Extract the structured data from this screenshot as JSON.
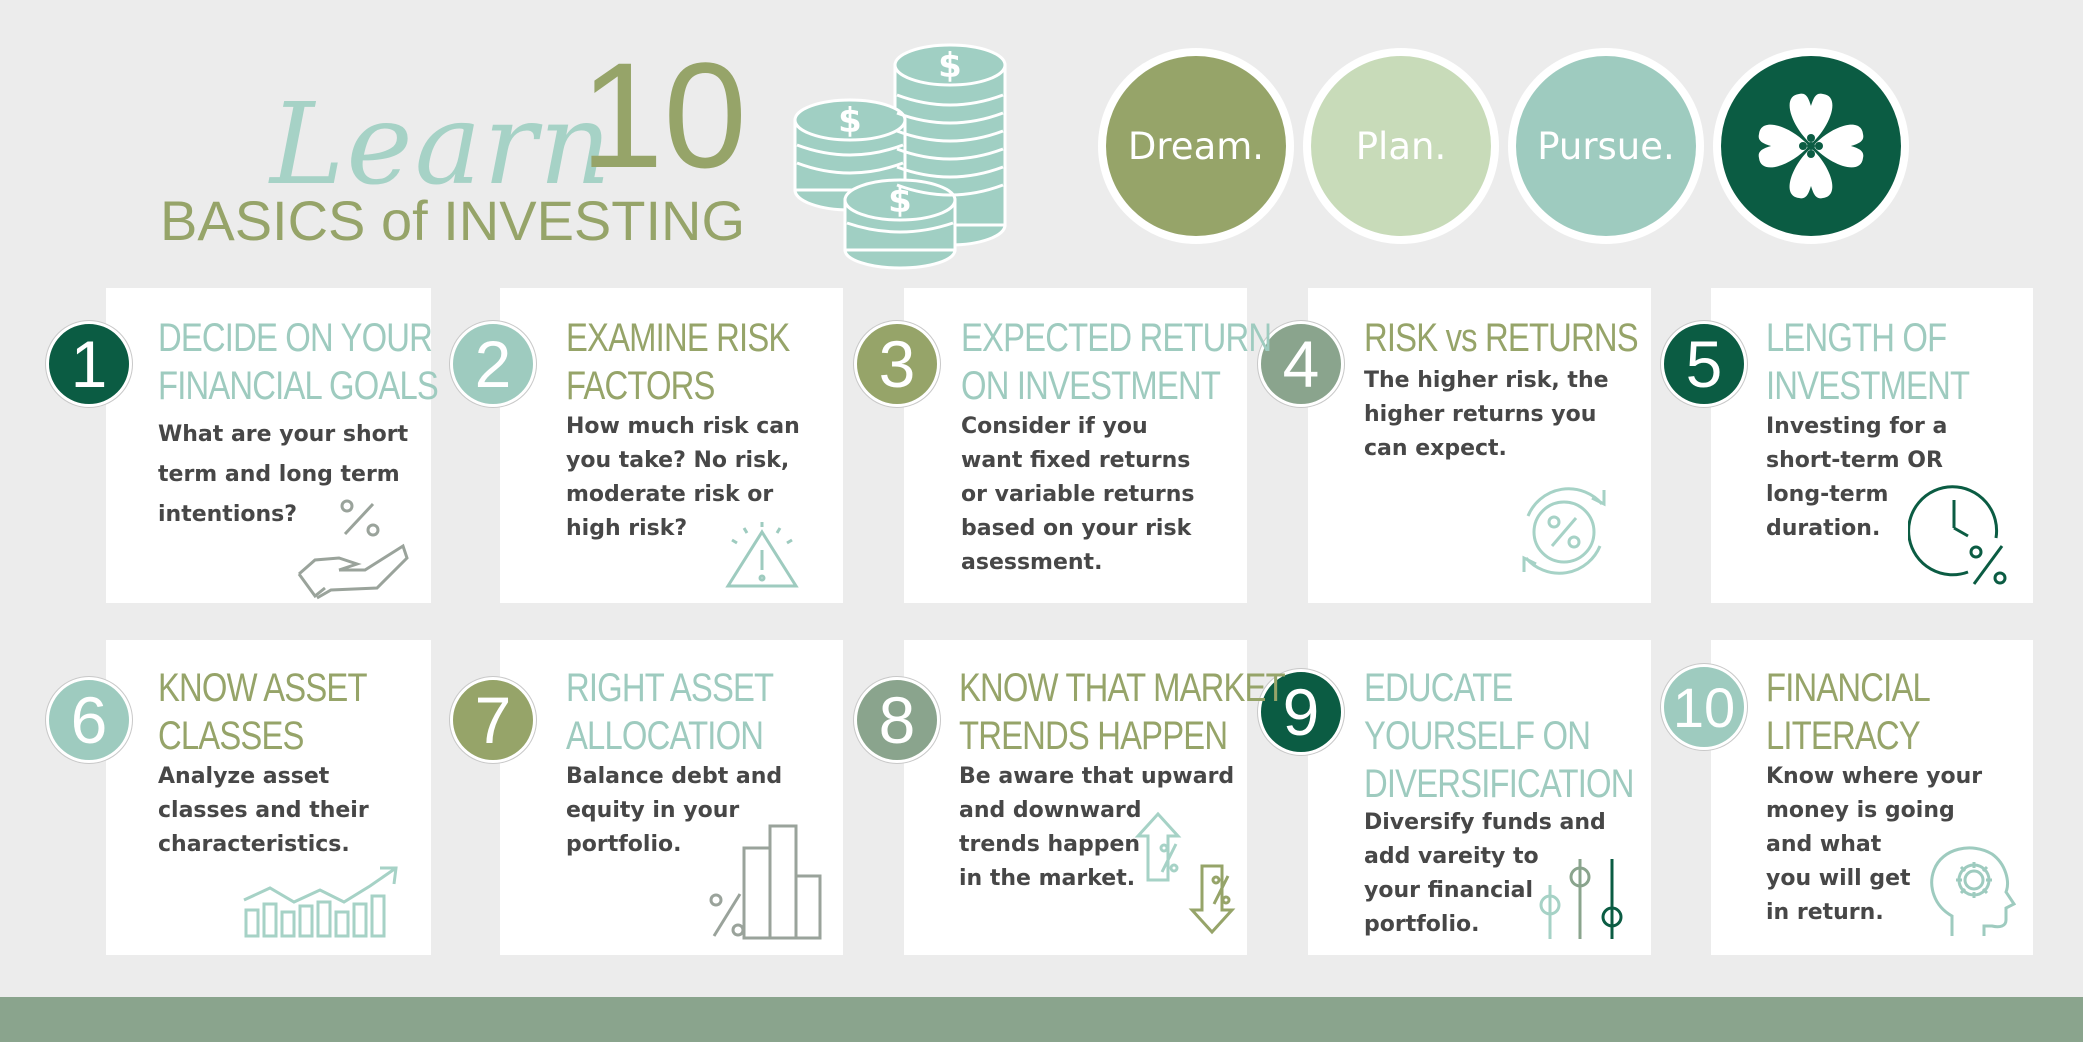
{
  "header": {
    "learn": "Learn",
    "ten": "10",
    "subtitle": "BASICS of INVESTING"
  },
  "pillars": [
    {
      "label": "Dream.",
      "color": "#96a469"
    },
    {
      "label": "Plan.",
      "color": "#c8dbb9"
    },
    {
      "label": "Pursue.",
      "color": "#9ecbbf"
    }
  ],
  "logo_color": "#0b5c43",
  "colors": {
    "dark_green": "#0b5c43",
    "mint": "#9ecbbf",
    "olive": "#96a469",
    "sage": "#8aa48d",
    "text_gray": "#474747"
  },
  "steps": [
    {
      "num": "1",
      "title_1": "DECIDE ON YOUR",
      "title_2": "FINANCIAL GOALS",
      "title_3": "",
      "body": [
        "What are your short",
        "term and long term",
        "intentions?"
      ],
      "icon": "hand-percent-icon"
    },
    {
      "num": "2",
      "title_1": "EXAMINE RISK",
      "title_2": "FACTORS",
      "title_3": "",
      "body": [
        "How much risk can",
        "you take? No risk,",
        "moderate risk or",
        "high risk?"
      ],
      "icon": "warning-icon"
    },
    {
      "num": "3",
      "title_1": "EXPECTED RETURN",
      "title_2": "ON INVESTMENT",
      "title_3": "",
      "body": [
        "Consider if you",
        "want fixed returns",
        "or variable returns",
        "based on your risk",
        "asessment."
      ],
      "icon": ""
    },
    {
      "num": "4",
      "title_1": "RISK vs RETURNS",
      "title_2": "",
      "title_3": "",
      "body": [
        "The higher risk, the",
        "higher returns you",
        "can expect."
      ],
      "icon": "percent-cycle-icon"
    },
    {
      "num": "5",
      "title_1": "LENGTH OF",
      "title_2": "INVESTMENT",
      "title_3": "",
      "body": [
        "Investing for a",
        "short-term OR",
        "long-term",
        "duration."
      ],
      "icon": "clock-percent-icon"
    },
    {
      "num": "6",
      "title_1": "KNOW ASSET",
      "title_2": "CLASSES",
      "title_3": "",
      "body": [
        "Analyze asset",
        "classes and their",
        "characteristics."
      ],
      "icon": "growth-chart-icon"
    },
    {
      "num": "7",
      "title_1": "RIGHT ASSET",
      "title_2": "ALLOCATION",
      "title_3": "",
      "body": [
        "Balance debt and",
        "equity in your",
        "portfolio."
      ],
      "icon": "bar-percent-icon"
    },
    {
      "num": "8",
      "title_1": "KNOW THAT MARKET",
      "title_2": "TRENDS HAPPEN",
      "title_3": "",
      "body": [
        "Be aware that upward",
        "and downward",
        "trends happen",
        "in the market."
      ],
      "icon": "trend-arrows-icon"
    },
    {
      "num": "9",
      "title_1": "EDUCATE",
      "title_2": "YOURSELF ON",
      "title_3": "DIVERSIFICATION",
      "body": [
        "Diversify funds and",
        "add vareity to",
        "your financial",
        "portfolio."
      ],
      "icon": "sliders-icon"
    },
    {
      "num": "10",
      "title_1": "FINANCIAL",
      "title_2": "LITERACY",
      "title_3": "",
      "body": [
        "Know where your",
        "money is going",
        "and what",
        "you will get",
        "in return."
      ],
      "icon": "head-gear-icon"
    }
  ]
}
